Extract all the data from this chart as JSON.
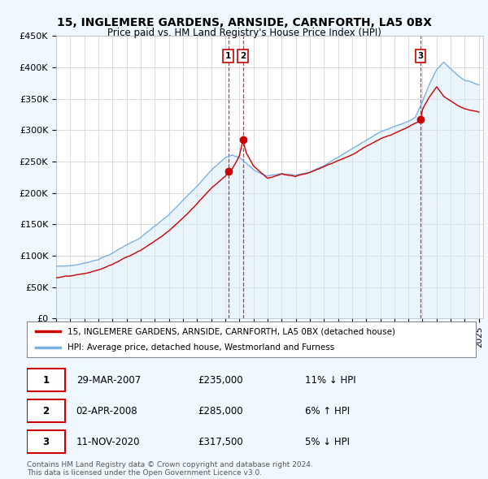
{
  "title": "15, INGLEMERE GARDENS, ARNSIDE, CARNFORTH, LA5 0BX",
  "subtitle": "Price paid vs. HM Land Registry's House Price Index (HPI)",
  "ylim": [
    0,
    450000
  ],
  "yticks": [
    0,
    50000,
    100000,
    150000,
    200000,
    250000,
    300000,
    350000,
    400000,
    450000
  ],
  "ytick_labels": [
    "£0",
    "£50K",
    "£100K",
    "£150K",
    "£200K",
    "£250K",
    "£300K",
    "£350K",
    "£400K",
    "£450K"
  ],
  "sale_color": "#cc0000",
  "hpi_color": "#7ab0e0",
  "hpi_fill_color": "#d6eaf8",
  "vline_color": "#cc0000",
  "sale_dates_year": [
    2007.21,
    2008.25,
    2020.86
  ],
  "sale_prices": [
    235000,
    285000,
    317500
  ],
  "sale_labels": [
    "1",
    "2",
    "3"
  ],
  "legend_sale_label": "15, INGLEMERE GARDENS, ARNSIDE, CARNFORTH, LA5 0BX (detached house)",
  "legend_hpi_label": "HPI: Average price, detached house, Westmorland and Furness",
  "table_data": [
    [
      "1",
      "29-MAR-2007",
      "£235,000",
      "11% ↓ HPI"
    ],
    [
      "2",
      "02-APR-2008",
      "£285,000",
      "6% ↑ HPI"
    ],
    [
      "3",
      "11-NOV-2020",
      "£317,500",
      "5% ↓ HPI"
    ]
  ],
  "footnote": "Contains HM Land Registry data © Crown copyright and database right 2024.\nThis data is licensed under the Open Government Licence v3.0.",
  "background_color": "#f0f8ff",
  "plot_bg_color": "#ffffff",
  "grid_color": "#cccccc",
  "hpi_key_years": [
    1995,
    1996,
    1997,
    1998,
    1999,
    2000,
    2001,
    2002,
    2003,
    2004,
    2005,
    2006,
    2007,
    2007.5,
    2008,
    2008.5,
    2009,
    2009.5,
    2010,
    2011,
    2012,
    2013,
    2014,
    2015,
    2016,
    2017,
    2018,
    2019,
    2020,
    2020.5,
    2021,
    2021.5,
    2022,
    2022.5,
    2023,
    2023.5,
    2024,
    2025
  ],
  "hpi_key_vals": [
    83000,
    84000,
    88000,
    95000,
    105000,
    118000,
    130000,
    148000,
    165000,
    188000,
    210000,
    235000,
    257000,
    262000,
    258000,
    248000,
    238000,
    232000,
    228000,
    232000,
    230000,
    235000,
    245000,
    258000,
    272000,
    285000,
    298000,
    308000,
    315000,
    322000,
    348000,
    375000,
    398000,
    410000,
    400000,
    390000,
    382000,
    375000
  ],
  "sale_key_years": [
    1995,
    1996,
    1997,
    1998,
    1999,
    2000,
    2001,
    2002,
    2003,
    2004,
    2005,
    2006,
    2007,
    2007.21,
    2007.5,
    2008,
    2008.25,
    2008.5,
    2009,
    2009.5,
    2010,
    2011,
    2012,
    2013,
    2014,
    2015,
    2016,
    2017,
    2018,
    2019,
    2020,
    2020.86,
    2021,
    2021.5,
    2022,
    2022.5,
    2023,
    2023.5,
    2024,
    2025
  ],
  "sale_key_vals": [
    65000,
    67000,
    70000,
    76000,
    85000,
    96000,
    107000,
    122000,
    138000,
    160000,
    183000,
    208000,
    228000,
    235000,
    240000,
    260000,
    285000,
    265000,
    245000,
    235000,
    225000,
    232000,
    228000,
    235000,
    245000,
    255000,
    265000,
    278000,
    290000,
    298000,
    308000,
    317500,
    335000,
    355000,
    370000,
    355000,
    348000,
    340000,
    335000,
    330000
  ]
}
